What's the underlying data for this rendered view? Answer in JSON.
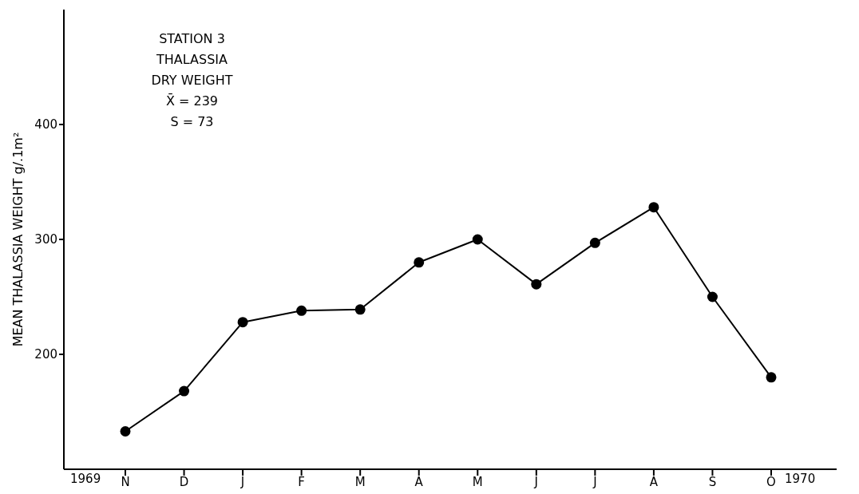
{
  "chart_data": {
    "type": "line",
    "ylabel": "MEAN THALASSIA WEIGHT g/.1m²",
    "categories": [
      "N",
      "D",
      "J",
      "F",
      "M",
      "A",
      "M",
      "J",
      "J",
      "A",
      "S",
      "O"
    ],
    "series": [
      {
        "color": "#000000",
        "values": [
          133,
          168,
          228,
          238,
          239,
          280,
          300,
          261,
          297,
          328,
          250,
          180
        ]
      }
    ],
    "ylim": [
      100,
      500
    ],
    "yticks": [
      200,
      300,
      400
    ],
    "grid": false,
    "legend": false,
    "marker": "circle",
    "line_style": "solid",
    "annotations": [
      "STATION 3",
      "THALASSIA",
      "DRY WEIGHT",
      "X̄ = 239",
      "S = 73",
      "1969",
      "1970"
    ]
  }
}
